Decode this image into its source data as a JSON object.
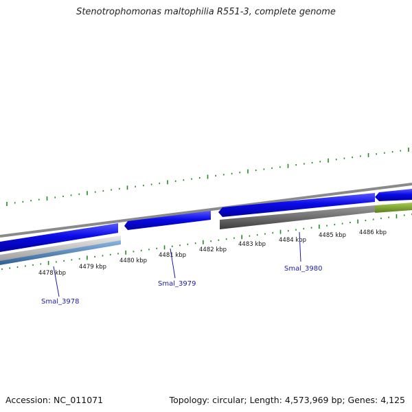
{
  "title": "Stenotrophomonas maltophilia R551-3, complete genome",
  "footer": {
    "accession_text": "Accession: NC_011071",
    "summary_text": "Topology: circular; Length: 4,573,969 bp; Genes: 4,125"
  },
  "scale_labels": [
    "4478 kbp",
    "4479 kbp",
    "4480 kbp",
    "4481 kbp",
    "4482 kbp",
    "4483 kbp",
    "4484 kbp",
    "4485 kbp",
    "4486 kbp"
  ],
  "gene_labels": [
    "Smal_3978",
    "Smal_3979",
    "Smal_3980"
  ],
  "colors": {
    "cds_forward": "#0a0ae6",
    "cds_reverse_gray": "#6e6e6e",
    "cds_light_blue": "#4a86c0",
    "cds_green": "#77a22c",
    "backbone": "#8a8a8a",
    "ticks": "#1f8a1f",
    "label_blue": "#1a1aa6"
  }
}
